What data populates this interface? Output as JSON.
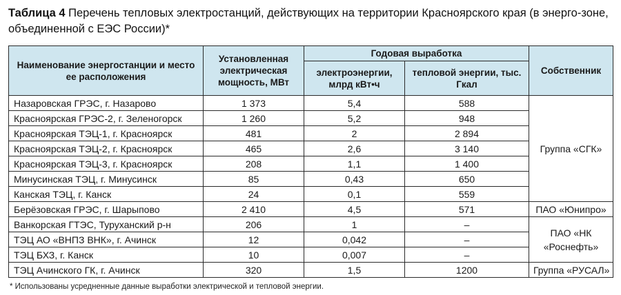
{
  "caption": {
    "label": "Таблица 4",
    "text": " Перечень тепловых электростанций, действующих на территории Красноярского края (в энерго-зоне, объединенной с ЕЭС России)*"
  },
  "headers": {
    "name": "Наименование энергостанции и место ее расположения",
    "capacity": "Установленная электрическая мощность, МВт",
    "annual": "Годовая выработка",
    "electric": "электроэнергии, млрд кВт•ч",
    "heat": "тепловой энергии, тыс. Гкал",
    "owner": "Собственник"
  },
  "rows": [
    {
      "name": "Назаровская ГРЭС, г. Назарово",
      "capacity": "1 373",
      "electric": "5,4",
      "heat": "588"
    },
    {
      "name": "Красноярская ГРЭС-2, г. Зеленогорск",
      "capacity": "1 260",
      "electric": "5,2",
      "heat": "948"
    },
    {
      "name": "Красноярская ТЭЦ-1, г. Красноярск",
      "capacity": "481",
      "electric": "2",
      "heat": "2 894"
    },
    {
      "name": "Красноярская ТЭЦ-2, г. Красноярск",
      "capacity": "465",
      "electric": "2,6",
      "heat": "3 140"
    },
    {
      "name": "Красноярская ТЭЦ-3, г. Красноярск",
      "capacity": "208",
      "electric": "1,1",
      "heat": "1 400"
    },
    {
      "name": "Минусинская ТЭЦ, г. Минусинск",
      "capacity": "85",
      "electric": "0,43",
      "heat": "650"
    },
    {
      "name": "Канская ТЭЦ, г. Канск",
      "capacity": "24",
      "electric": "0,1",
      "heat": "559"
    },
    {
      "name": "Берёзовская ГРЭС, г. Шарыпово",
      "capacity": "2 410",
      "electric": "4,5",
      "heat": "571"
    },
    {
      "name": "Ванкорская ГТЭС, Туруханский р-н",
      "capacity": "206",
      "electric": "1",
      "heat": "–"
    },
    {
      "name": "ТЭЦ АО «ВНПЗ ВНК», г. Ачинск",
      "capacity": "12",
      "electric": "0,042",
      "heat": "–"
    },
    {
      "name": "ТЭЦ БХЗ, г. Канск",
      "capacity": "10",
      "electric": "0,007",
      "heat": "–"
    },
    {
      "name": "ТЭЦ Ачинского ГК, г. Ачинск",
      "capacity": "320",
      "electric": "1,5",
      "heat": "1200"
    }
  ],
  "owners": {
    "sgk": "Группа «СГК»",
    "unipro": "ПАО «Юнипро»",
    "rosneft_line1": "ПАО «НК",
    "rosneft_line2": "«Роснефть»",
    "rusal": "Группа «РУСАЛ»"
  },
  "footnote": "* Использованы усредненные данные выработки электрической и тепловой энергии."
}
